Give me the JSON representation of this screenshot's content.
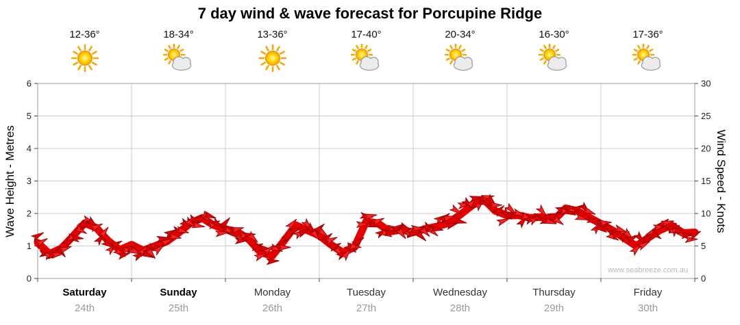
{
  "chart": {
    "title": "7 day wind & wave forecast for Porcupine Ridge",
    "left_axis": {
      "title": "Wave Height - Metres",
      "ticks": [
        0,
        1,
        2,
        3,
        4,
        5,
        6
      ]
    },
    "right_axis": {
      "title": "Wind Speed - Knots",
      "ticks": [
        0,
        5,
        10,
        15,
        20,
        25,
        30
      ]
    },
    "watermark": "www.seabreeze.com.au",
    "colors": {
      "grid": "#cccccc",
      "border": "#999999",
      "band": "#e60000",
      "band_alt": "#ff2020",
      "band_stroke": "#8f0000",
      "tick_text": "#222222",
      "watermark": "#b8b8b8"
    }
  },
  "days": [
    {
      "name": "Saturday",
      "date": "24th",
      "temps": "12-36°",
      "icon": "sunny",
      "weekend": true
    },
    {
      "name": "Sunday",
      "date": "25th",
      "temps": "18-34°",
      "icon": "partly-cloudy",
      "weekend": true
    },
    {
      "name": "Monday",
      "date": "26th",
      "temps": "13-36°",
      "icon": "sunny",
      "weekend": false
    },
    {
      "name": "Tuesday",
      "date": "27th",
      "temps": "17-40°",
      "icon": "partly-cloudy",
      "weekend": false
    },
    {
      "name": "Wednesday",
      "date": "28th",
      "temps": "20-34°",
      "icon": "partly-cloudy",
      "weekend": false
    },
    {
      "name": "Thursday",
      "date": "29th",
      "temps": "16-30°",
      "icon": "partly-cloudy",
      "weekend": false
    },
    {
      "name": "Friday",
      "date": "30th",
      "temps": "17-36°",
      "icon": "partly-cloudy",
      "weekend": false
    }
  ],
  "chart_data": {
    "type": "area",
    "title": "7 day wind & wave forecast for Porcupine Ridge",
    "categories": [
      "Saturday 24th",
      "Sunday 25th",
      "Monday 26th",
      "Tuesday 27th",
      "Wednesday 28th",
      "Thursday 29th",
      "Friday 30th"
    ],
    "x_unit": "hours",
    "x_start_hour": 0,
    "x_hours_step": 3,
    "x_total_hours": 168,
    "left_ylabel": "Wave Height - Metres",
    "left_ylim": [
      0,
      6
    ],
    "right_ylabel": "Wind Speed - Knots",
    "right_ylim": [
      0,
      30
    ],
    "grid": true,
    "legend": false,
    "note": "Single red wind-arrow band plotted against the right (knots) axis; the left wave axis shares the same scale (metres = knots / 5).",
    "series": [
      {
        "name": "Wind Speed",
        "units": "knots",
        "axis": "right",
        "values": [
          5.5,
          3.8,
          4.6,
          6.5,
          8.5,
          7.8,
          5.8,
          4.4,
          5.2,
          4.3,
          5.0,
          5.7,
          7.0,
          8.5,
          9.3,
          8.2,
          7.6,
          7.2,
          6.0,
          4.0,
          3.5,
          5.8,
          8.2,
          7.4,
          6.6,
          5.2,
          4.0,
          4.8,
          8.8,
          8.5,
          7.2,
          7.5,
          7.1,
          7.6,
          8.0,
          8.5,
          9.8,
          11.2,
          12.2,
          10.4,
          9.7,
          9.7,
          9.3,
          9.5,
          9.0,
          10.8,
          10.4,
          9.4,
          8.4,
          7.4,
          6.2,
          5.0,
          6.2,
          7.4,
          8.2,
          7.0,
          7.1
        ]
      }
    ]
  }
}
